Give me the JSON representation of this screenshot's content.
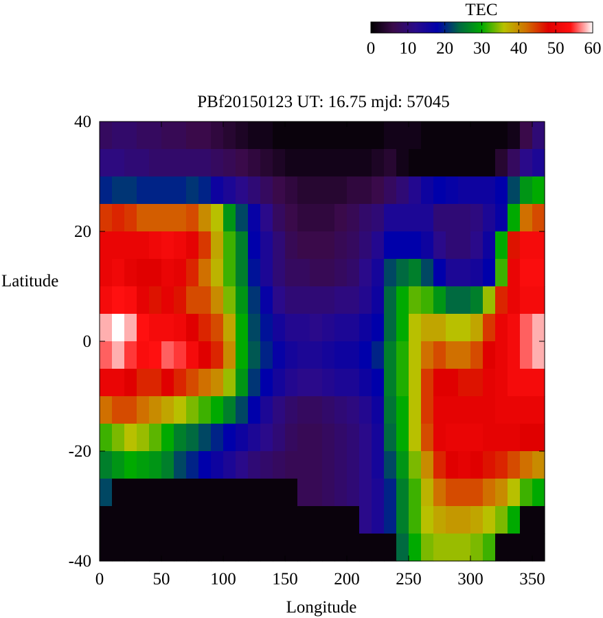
{
  "chart_data": {
    "type": "heatmap",
    "title": "PBf20150123  UT: 16.75  mjd: 57045",
    "xlabel": "Longitude",
    "ylabel": "Latitude",
    "xlim": [
      0,
      360
    ],
    "ylim": [
      -40,
      40
    ],
    "x_ticks": [
      "0",
      "50",
      "100",
      "150",
      "200",
      "250",
      "300",
      "350"
    ],
    "y_ticks": [
      "40",
      "20",
      "0",
      "-20",
      "-40"
    ],
    "colorbar": {
      "label": "TEC",
      "range": [
        0,
        60
      ],
      "ticks": [
        "0",
        "10",
        "20",
        "30",
        "40",
        "50",
        "60"
      ],
      "colors": [
        "#000000",
        "#3a0a4a",
        "#2a0a8a",
        "#0000aa",
        "#006a40",
        "#00aa00",
        "#b8c000",
        "#d07000",
        "#e00000",
        "#ff1010",
        "#ffffff"
      ]
    },
    "grid": false,
    "x_step": 10,
    "y_step": 5,
    "x_centers": [
      5,
      15,
      25,
      35,
      45,
      55,
      65,
      75,
      85,
      95,
      105,
      115,
      125,
      135,
      145,
      155,
      165,
      175,
      185,
      195,
      205,
      215,
      225,
      235,
      245,
      255,
      265,
      275,
      285,
      295,
      305,
      315,
      325,
      335,
      345,
      355
    ],
    "y_centers": [
      37.5,
      32.5,
      27.5,
      22.5,
      17.5,
      12.5,
      7.5,
      2.5,
      -2.5,
      -7.5,
      -12.5,
      -17.5,
      -22.5,
      -27.5,
      -32.5,
      -37.5
    ],
    "values": [
      [
        8,
        9,
        9,
        8,
        8,
        7,
        7,
        6,
        6,
        5,
        4,
        3,
        2,
        2,
        1,
        1,
        1,
        1,
        1,
        1,
        1,
        1,
        1,
        2,
        2,
        2,
        1,
        1,
        1,
        1,
        1,
        1,
        1,
        2,
        6,
        10
      ],
      [
        11,
        11,
        10,
        10,
        9,
        9,
        9,
        9,
        9,
        8,
        7,
        6,
        5,
        4,
        3,
        2,
        2,
        2,
        2,
        2,
        2,
        2,
        3,
        4,
        2,
        1,
        1,
        1,
        1,
        1,
        1,
        1,
        4,
        8,
        12,
        14
      ],
      [
        20,
        21,
        21,
        20,
        20,
        20,
        20,
        21,
        20,
        16,
        14,
        12,
        10,
        8,
        6,
        5,
        4,
        4,
        4,
        4,
        5,
        5,
        6,
        8,
        10,
        13,
        16,
        18,
        17,
        16,
        16,
        16,
        18,
        22,
        28,
        30
      ],
      [
        45,
        46,
        45,
        43,
        43,
        43,
        43,
        44,
        40,
        36,
        28,
        22,
        17,
        12,
        8,
        6,
        5,
        5,
        5,
        6,
        7,
        9,
        10,
        14,
        14,
        14,
        14,
        10,
        10,
        10,
        11,
        14,
        17,
        30,
        42,
        44
      ],
      [
        50,
        50,
        50,
        50,
        51,
        52,
        51,
        49,
        45,
        38,
        32,
        26,
        18,
        14,
        10,
        7,
        6,
        6,
        6,
        7,
        8,
        10,
        13,
        18,
        18,
        18,
        16,
        12,
        10,
        10,
        12,
        16,
        30,
        47,
        52,
        52
      ],
      [
        50,
        51,
        49,
        48,
        48,
        50,
        49,
        46,
        42,
        37,
        32,
        26,
        19,
        14,
        10,
        8,
        8,
        7,
        7,
        8,
        9,
        12,
        15,
        22,
        24,
        26,
        22,
        18,
        14,
        14,
        15,
        18,
        32,
        50,
        53,
        53
      ],
      [
        52,
        54,
        53,
        49,
        47,
        49,
        47,
        44,
        44,
        40,
        34,
        28,
        21,
        17,
        12,
        10,
        10,
        10,
        10,
        11,
        11,
        13,
        16,
        24,
        30,
        33,
        32,
        28,
        24,
        24,
        26,
        35,
        46,
        50,
        52,
        52
      ],
      [
        58,
        60,
        58,
        54,
        52,
        52,
        51,
        48,
        46,
        44,
        38,
        30,
        22,
        19,
        15,
        13,
        13,
        12,
        13,
        14,
        14,
        16,
        18,
        24,
        30,
        36,
        38,
        38,
        36,
        36,
        38,
        45,
        50,
        52,
        56,
        58
      ],
      [
        56,
        58,
        55,
        53,
        54,
        56,
        55,
        52,
        48,
        46,
        40,
        30,
        23,
        20,
        17,
        15,
        14,
        14,
        15,
        16,
        16,
        18,
        20,
        26,
        31,
        36,
        42,
        44,
        42,
        42,
        44,
        48,
        50,
        52,
        56,
        58
      ],
      [
        50,
        50,
        48,
        46,
        46,
        48,
        46,
        44,
        42,
        40,
        35,
        28,
        21,
        18,
        15,
        13,
        12,
        12,
        13,
        14,
        14,
        16,
        18,
        26,
        31,
        36,
        45,
        48,
        48,
        47,
        47,
        49,
        50,
        52,
        52,
        52
      ],
      [
        42,
        44,
        44,
        42,
        40,
        38,
        36,
        34,
        32,
        30,
        26,
        22,
        18,
        14,
        11,
        9,
        8,
        8,
        9,
        10,
        11,
        13,
        16,
        25,
        30,
        36,
        45,
        49,
        49,
        49,
        49,
        49,
        50,
        50,
        50,
        50
      ],
      [
        32,
        34,
        36,
        35,
        33,
        30,
        26,
        24,
        22,
        20,
        18,
        16,
        14,
        12,
        10,
        8,
        7,
        7,
        8,
        9,
        10,
        12,
        15,
        24,
        30,
        36,
        44,
        49,
        50,
        50,
        50,
        49,
        49,
        49,
        48,
        48
      ],
      [
        26,
        28,
        30,
        29,
        28,
        26,
        22,
        20,
        18,
        16,
        14,
        12,
        10,
        9,
        8,
        7,
        7,
        7,
        8,
        9,
        10,
        12,
        15,
        22,
        28,
        34,
        40,
        46,
        48,
        49,
        48,
        47,
        46,
        44,
        42,
        40
      ],
      [
        22,
        1,
        1,
        1,
        1,
        1,
        1,
        1,
        1,
        1,
        1,
        1,
        1,
        1,
        1,
        1,
        7,
        7,
        8,
        9,
        10,
        12,
        14,
        20,
        26,
        32,
        37,
        42,
        44,
        44,
        44,
        42,
        40,
        36,
        32,
        30
      ],
      [
        1,
        1,
        1,
        1,
        1,
        1,
        1,
        1,
        1,
        1,
        1,
        1,
        1,
        1,
        1,
        1,
        1,
        1,
        1,
        1,
        1,
        12,
        14,
        20,
        26,
        32,
        36,
        38,
        39,
        39,
        38,
        36,
        34,
        30,
        1,
        1
      ],
      [
        1,
        1,
        1,
        1,
        1,
        1,
        1,
        1,
        1,
        1,
        1,
        1,
        1,
        1,
        1,
        1,
        1,
        1,
        1,
        1,
        1,
        1,
        1,
        1,
        24,
        30,
        34,
        35,
        35,
        35,
        34,
        32,
        1,
        1,
        1,
        1
      ]
    ]
  }
}
